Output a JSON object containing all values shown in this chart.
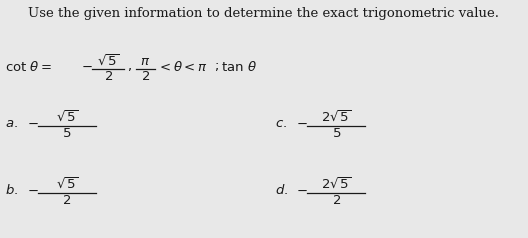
{
  "title": "Use the given information to determine the exact trigonometric value.",
  "background_color": "#e8e8e8",
  "text_color": "#1a1a1a",
  "figsize": [
    5.28,
    2.38
  ],
  "dpi": 100,
  "condition_line1": "$\\cot\\,\\theta = -\\dfrac{\\sqrt{5}}{2}\\;\\dfrac{\\pi}{2} < \\theta < \\pi\\,;\\,\\tan\\,\\theta$",
  "ans_a_num": "$\\sqrt{5}$",
  "ans_a_den": "$5$",
  "ans_b_num": "$\\sqrt{5}$",
  "ans_b_den": "$2$",
  "ans_c_num": "$2\\sqrt{5}$",
  "ans_c_den": "$5$",
  "ans_d_num": "$2\\sqrt{5}$",
  "ans_d_den": "$2$"
}
